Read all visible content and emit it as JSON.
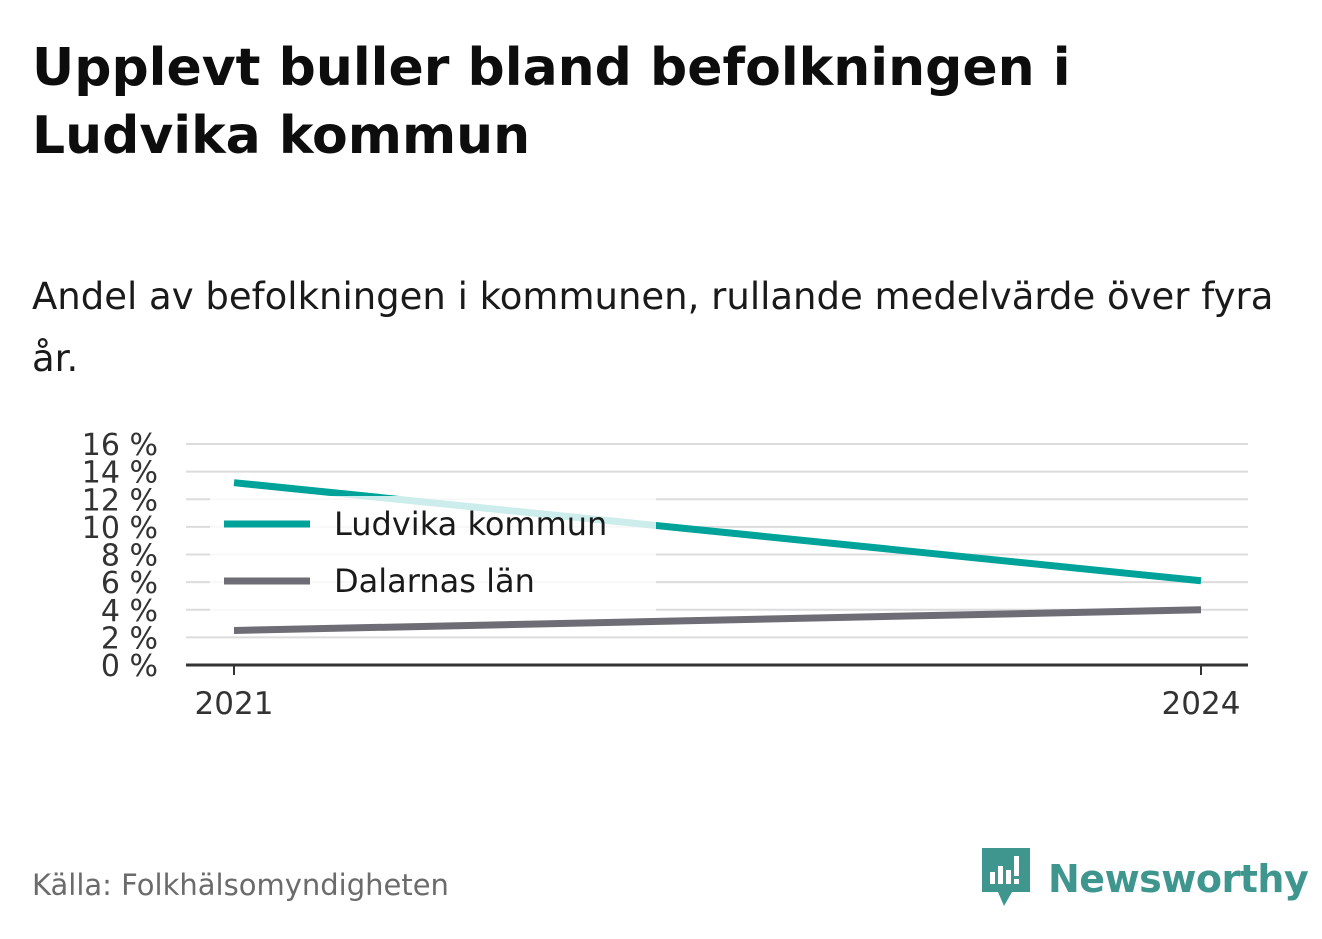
{
  "title": "Upplevt buller bland befolkningen i Ludvika kommun",
  "subtitle": "Andel av befolkningen i kommunen, rullande medelvärde över fyra år.",
  "source": "Källa: Folkhälsomyndigheten",
  "brand": {
    "name": "Newsworthy",
    "icon": "newsworthy-logo-icon",
    "color": "#3f968e"
  },
  "chart_data": {
    "type": "line",
    "title": "",
    "xlabel": "",
    "ylabel": "",
    "x": [
      "2021",
      "2024"
    ],
    "y_ticks": [
      "0 %",
      "2 %",
      "4 %",
      "6 %",
      "8 %",
      "10 %",
      "12 %",
      "14 %",
      "16 %"
    ],
    "ylim": [
      0,
      16
    ],
    "grid": true,
    "legend_position": "top-left",
    "series": [
      {
        "name": "Ludvika kommun",
        "values": [
          13.2,
          6.1
        ],
        "color": "#00a399"
      },
      {
        "name": "Dalarnas län",
        "values": [
          2.5,
          4.0
        ],
        "color": "#6e6d75"
      }
    ]
  }
}
